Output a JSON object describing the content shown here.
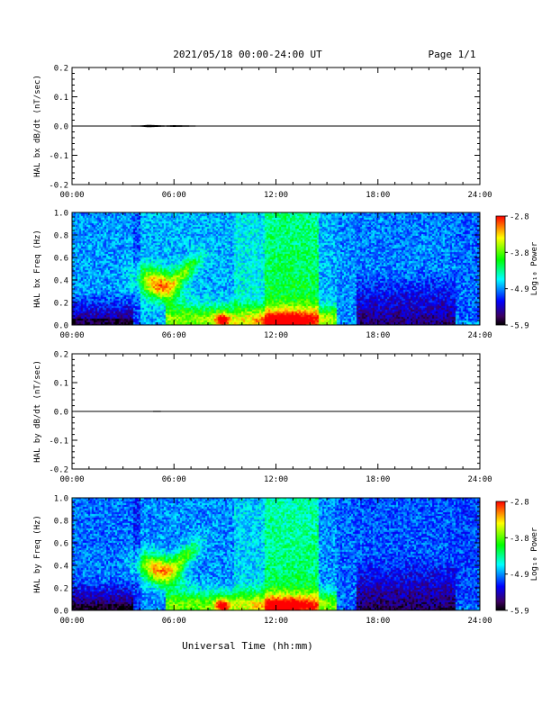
{
  "header": {
    "title": "2021/05/18  00:00-24:00 UT",
    "page_label": "Page 1/1"
  },
  "footer": {
    "xlabel": "Universal Time (hh:mm)"
  },
  "time_ticks": [
    "00:00",
    "06:00",
    "12:00",
    "18:00",
    "24:00"
  ],
  "colorbar": {
    "label": "Log₁₀ Power",
    "tick_labels": [
      "-2.8",
      "-3.8",
      "-4.9",
      "-5.9"
    ],
    "colors": [
      "#ff0000",
      "#ffff00",
      "#00ff00",
      "#00ffff",
      "#0000ff",
      "#3c0060",
      "#000000"
    ]
  },
  "chart_data": [
    {
      "type": "line",
      "ylabel": "HAL bx dB/dt (nT/sec)",
      "ylim": [
        -0.2,
        0.2
      ],
      "y_ticks": [
        "0.2",
        "0.1",
        "0.0",
        "-0.1",
        "-0.2"
      ],
      "xlim_hours": [
        0,
        24
      ],
      "x_hours": [
        0,
        2,
        4,
        4.5,
        5,
        5.5,
        6,
        7,
        8,
        8.3,
        12,
        18,
        24
      ],
      "values": [
        0.0,
        0.001,
        0.002,
        0.004,
        0.003,
        0.002,
        0.003,
        0.002,
        0.001,
        0.0,
        0.0,
        0.0,
        0.0
      ],
      "x_tick_labels": [
        "00:00",
        "06:00",
        "12:00",
        "18:00",
        "24:00"
      ]
    },
    {
      "type": "heatmap",
      "ylabel": "HAL bx Freq (Hz)",
      "ylim": [
        0.0,
        1.0
      ],
      "y_ticks": [
        "1.0",
        "0.8",
        "0.6",
        "0.4",
        "0.2",
        "0.0"
      ],
      "xlim_hours": [
        0,
        24
      ],
      "color_range": [
        -5.9,
        -2.8
      ],
      "x_tick_labels": [
        "00:00",
        "06:00",
        "12:00",
        "18:00",
        "24:00"
      ]
    },
    {
      "type": "line",
      "ylabel": "HAL by dB/dt (nT/sec)",
      "ylim": [
        -0.2,
        0.2
      ],
      "y_ticks": [
        "0.2",
        "0.1",
        "0.0",
        "-0.1",
        "-0.2"
      ],
      "xlim_hours": [
        0,
        24
      ],
      "x_hours": [
        0,
        2,
        4,
        5,
        6,
        8,
        10,
        12,
        14,
        16,
        18,
        24
      ],
      "values": [
        0.0,
        0.001,
        0.001,
        0.002,
        0.001,
        0.001,
        0.001,
        0.001,
        0.0,
        0.0,
        0.0,
        0.0
      ],
      "x_tick_labels": [
        "00:00",
        "06:00",
        "12:00",
        "18:00",
        "24:00"
      ]
    },
    {
      "type": "heatmap",
      "ylabel": "HAL by Freq (Hz)",
      "ylim": [
        0.0,
        1.0
      ],
      "y_ticks": [
        "1.0",
        "0.8",
        "0.6",
        "0.4",
        "0.2",
        "0.0"
      ],
      "xlim_hours": [
        0,
        24
      ],
      "color_range": [
        -5.9,
        -2.8
      ],
      "x_tick_labels": [
        "00:00",
        "06:00",
        "12:00",
        "18:00",
        "24:00"
      ]
    }
  ]
}
